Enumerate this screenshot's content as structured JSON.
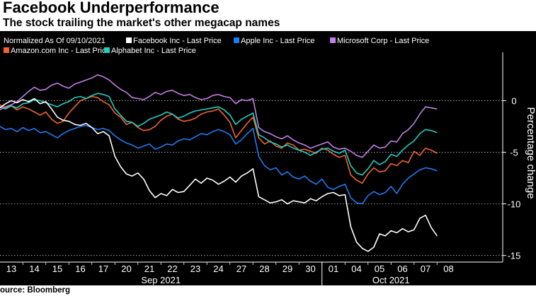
{
  "header": {
    "title": "Facebook Underperformance",
    "subtitle": "The stock trailing the market's other megacap names"
  },
  "footer": {
    "source": "ource: Bloomberg"
  },
  "colors": {
    "background": "#000000",
    "grid": "#bfbfbf",
    "axis_text": "#ffffff",
    "legend_text": "#ffffff"
  },
  "chart_data": {
    "type": "line",
    "legend_caption": "Normalized As Of 09/10/2021",
    "ylabel": "Percentage change",
    "ylim": [
      -15.5,
      4
    ],
    "yticks": [
      0,
      -5,
      -10,
      -15
    ],
    "ytick_labels": [
      "0",
      "-5",
      "-10",
      "-15"
    ],
    "grid": true,
    "legend_position": "top-left",
    "x_ticks": [
      "13",
      "14",
      "15",
      "16",
      "17",
      "20",
      "21",
      "22",
      "23",
      "24",
      "27",
      "28",
      "29",
      "30",
      "01",
      "04",
      "05",
      "06",
      "07",
      "08"
    ],
    "x_month_labels": [
      {
        "label": "Sep 2021",
        "start_tick": 0,
        "end_tick": 13
      },
      {
        "label": "Oct 2021",
        "start_tick": 14,
        "end_tick": 19
      }
    ],
    "x_points_per_day": 4,
    "x_total_points": 77,
    "series": [
      {
        "name": "Amazon.com Inc - Last Price",
        "color": "#f4632d",
        "values": [
          -0.4,
          -0.7,
          -0.5,
          -0.9,
          -0.6,
          -0.8,
          -1.1,
          -1.4,
          -1.1,
          -1.8,
          -2.2,
          -2.0,
          -1.2,
          -0.6,
          0.0,
          0.2,
          0.4,
          0.3,
          -0.1,
          -0.4,
          -1.2,
          -1.6,
          -2.3,
          -2.1,
          -2.6,
          -2.9,
          -2.8,
          -2.5,
          -1.9,
          -1.5,
          -1.3,
          -1.8,
          -2.0,
          -1.9,
          -1.7,
          -1.3,
          -1.1,
          -1.0,
          -0.8,
          -1.4,
          -2.1,
          -3.6,
          -2.9,
          -2.2,
          -1.6,
          -3.6,
          -4.2,
          -3.9,
          -4.4,
          -4.6,
          -4.1,
          -4.3,
          -4.8,
          -4.7,
          -4.9,
          -5.1,
          -4.6,
          -4.8,
          -5.2,
          -5.5,
          -5.3,
          -7.2,
          -7.7,
          -8.0,
          -7.1,
          -6.5,
          -6.9,
          -6.8,
          -6.1,
          -6.3,
          -5.8,
          -6.0,
          -4.9,
          -5.3,
          -4.6,
          -4.8,
          -5.1
        ]
      },
      {
        "name": "Apple Inc - Last Price",
        "color": "#1e7cf4",
        "values": [
          -2.5,
          -2.8,
          -2.7,
          -3.0,
          -2.6,
          -2.9,
          -2.7,
          -3.1,
          -3.0,
          -3.3,
          -3.6,
          -3.2,
          -2.9,
          -2.7,
          -2.5,
          -2.4,
          -2.6,
          -2.8,
          -2.7,
          -2.9,
          -3.4,
          -3.8,
          -4.1,
          -4.3,
          -4.6,
          -4.4,
          -4.2,
          -4.7,
          -4.5,
          -4.2,
          -4.3,
          -3.9,
          -3.7,
          -3.8,
          -3.5,
          -3.2,
          -3.3,
          -3.0,
          -2.8,
          -3.0,
          -3.3,
          -4.2,
          -3.8,
          -3.2,
          -2.7,
          -5.4,
          -6.3,
          -6.7,
          -6.5,
          -7.2,
          -6.9,
          -7.4,
          -7.6,
          -7.3,
          -7.8,
          -8.1,
          -7.6,
          -8.4,
          -8.6,
          -8.3,
          -8.1,
          -9.4,
          -9.9,
          -10.0,
          -9.2,
          -8.8,
          -9.1,
          -8.9,
          -8.3,
          -9.0,
          -8.1,
          -7.5,
          -7.1,
          -6.7,
          -6.5,
          -6.6,
          -6.8
        ]
      },
      {
        "name": "Alphabet Inc - Last Price",
        "color": "#1fcfbf",
        "values": [
          -0.6,
          -0.8,
          -0.5,
          -0.7,
          -0.3,
          -0.2,
          0.1,
          0.0,
          -0.2,
          -0.4,
          -0.6,
          -0.3,
          -0.1,
          0.3,
          0.4,
          0.2,
          0.5,
          0.7,
          0.6,
          0.4,
          -0.8,
          -1.4,
          -2.0,
          -2.1,
          -2.5,
          -2.2,
          -1.8,
          -1.6,
          -1.4,
          -1.1,
          -1.3,
          -1.7,
          -1.5,
          -1.2,
          -1.0,
          -0.9,
          -0.8,
          -0.7,
          -0.6,
          -0.9,
          -1.4,
          -2.3,
          -1.8,
          -1.5,
          -1.2,
          -3.3,
          -3.6,
          -4.0,
          -4.2,
          -4.5,
          -4.3,
          -4.6,
          -4.8,
          -5.0,
          -5.3,
          -5.0,
          -4.7,
          -4.6,
          -4.9,
          -5.1,
          -4.8,
          -6.3,
          -7.0,
          -7.2,
          -6.6,
          -5.8,
          -6.2,
          -5.9,
          -5.2,
          -5.4,
          -4.8,
          -4.3,
          -3.9,
          -3.2,
          -2.8,
          -2.9,
          -3.1
        ]
      },
      {
        "name": "Microsoft Corp - Last Price",
        "color": "#c47fe6",
        "values": [
          -0.9,
          -0.6,
          -0.4,
          -0.1,
          0.4,
          0.9,
          1.3,
          1.0,
          1.1,
          1.5,
          1.7,
          1.4,
          1.2,
          1.6,
          1.8,
          2.0,
          2.2,
          2.5,
          2.3,
          2.0,
          1.5,
          1.1,
          0.8,
          0.3,
          0.2,
          0.1,
          0.4,
          0.8,
          0.6,
          0.9,
          1.0,
          0.7,
          0.5,
          0.6,
          0.3,
          0.1,
          0.2,
          0.5,
          0.6,
          0.4,
          0.3,
          -0.3,
          0.1,
          0.0,
          0.2,
          -2.6,
          -3.0,
          -3.2,
          -3.5,
          -3.7,
          -3.4,
          -3.8,
          -4.1,
          -4.3,
          -4.6,
          -4.4,
          -4.2,
          -4.0,
          -4.5,
          -4.7,
          -4.6,
          -4.9,
          -5.3,
          -5.5,
          -4.9,
          -4.3,
          -4.6,
          -4.5,
          -3.9,
          -4.0,
          -3.2,
          -2.8,
          -2.2,
          -1.3,
          -0.6,
          -0.7,
          -0.8
        ]
      },
      {
        "name": "Facebook Inc - Last Price",
        "color": "#ffffff",
        "values": [
          -0.7,
          -0.3,
          0.0,
          -0.2,
          0.1,
          -0.1,
          0.2,
          -0.3,
          -0.1,
          -0.8,
          -1.6,
          -1.9,
          -2.0,
          -2.3,
          -2.4,
          -2.2,
          -2.6,
          -3.2,
          -3.0,
          -3.4,
          -5.4,
          -6.4,
          -7.1,
          -7.3,
          -7.0,
          -7.6,
          -8.7,
          -9.4,
          -9.0,
          -9.2,
          -8.6,
          -8.9,
          -8.8,
          -8.2,
          -7.6,
          -8.0,
          -7.5,
          -7.7,
          -8.1,
          -7.8,
          -7.4,
          -7.9,
          -7.3,
          -7.0,
          -6.6,
          -9.3,
          -9.6,
          -9.9,
          -9.8,
          -9.6,
          -10.0,
          -9.7,
          -9.8,
          -9.9,
          -9.5,
          -9.7,
          -9.3,
          -9.0,
          -8.9,
          -9.2,
          -9.1,
          -12.2,
          -13.7,
          -14.3,
          -14.6,
          -14.2,
          -12.9,
          -13.1,
          -12.6,
          -12.8,
          -12.4,
          -12.7,
          -12.5,
          -11.4,
          -11.1,
          -12.3,
          -13.1
        ]
      }
    ]
  }
}
